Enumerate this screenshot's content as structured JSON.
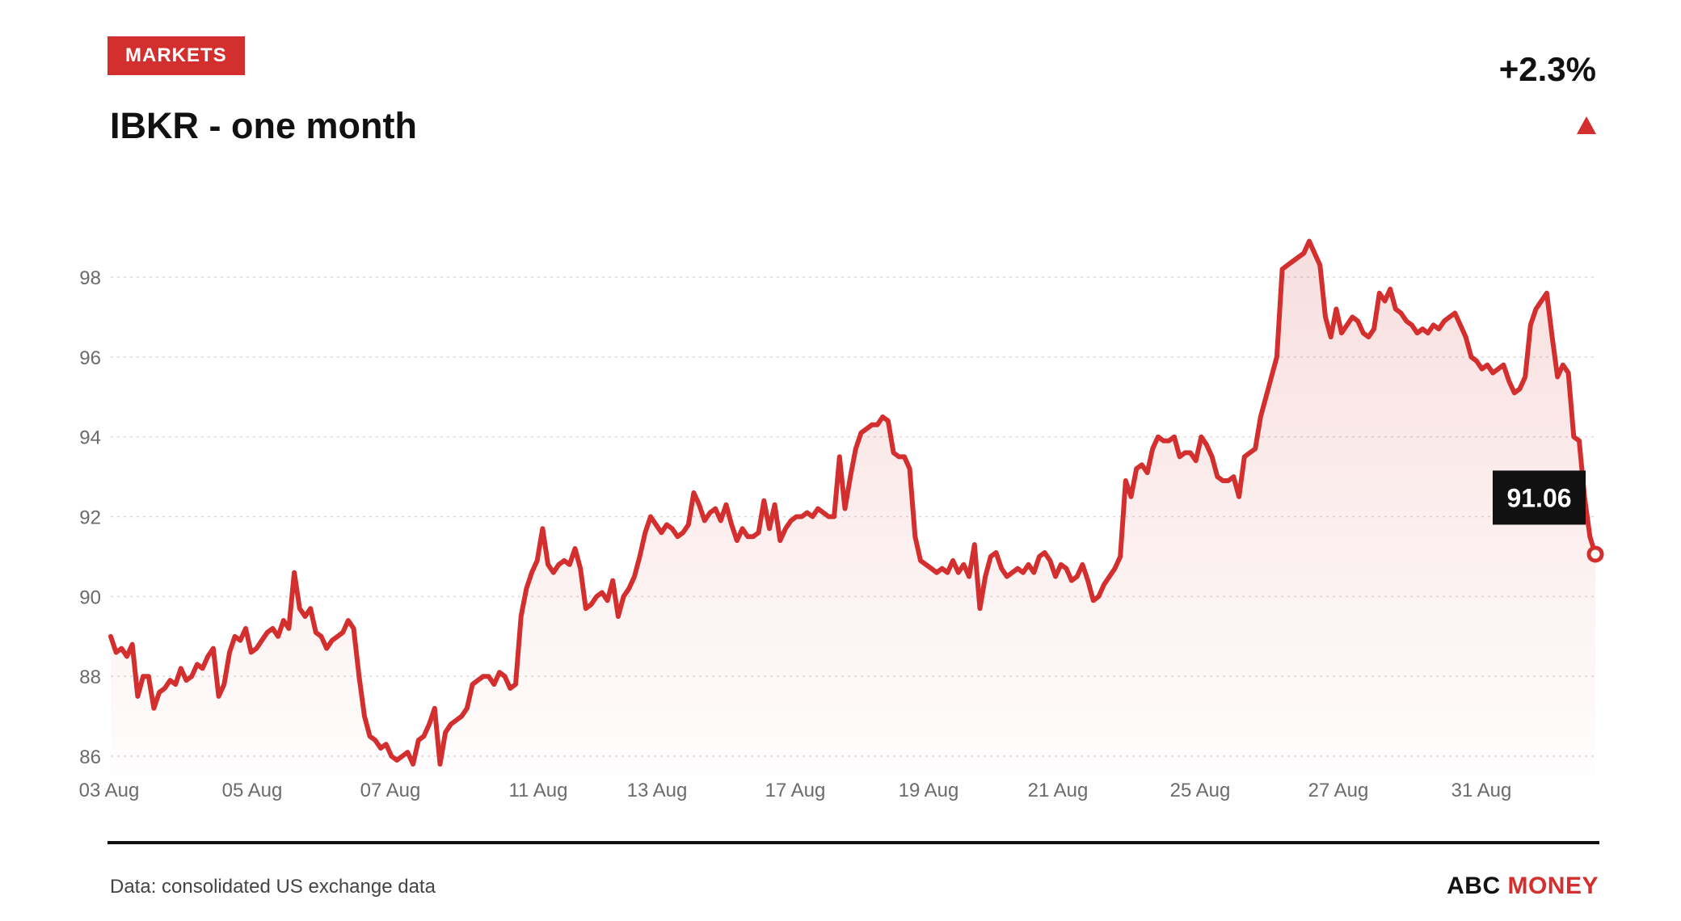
{
  "badge": "MARKETS",
  "title": "IBKR - one month",
  "change": "+2.3%",
  "source": "Data: consolidated US exchange data",
  "brand": {
    "part1": "ABC",
    "part2": "MONEY"
  },
  "colors": {
    "accent": "#d32f2f",
    "grid": "#d9d9d9",
    "axis_text": "#6b6b6b"
  },
  "chart_data": {
    "type": "area",
    "title": "IBKR - one month",
    "xlabel": "",
    "ylabel": "",
    "ylim": [
      85.5,
      99
    ],
    "yticks": [
      86,
      88,
      90,
      92,
      94,
      96,
      98
    ],
    "grid": true,
    "x_tick_labels": [
      "03 Aug",
      "05 Aug",
      "07 Aug",
      "11 Aug",
      "13 Aug",
      "17 Aug",
      "19 Aug",
      "21 Aug",
      "25 Aug",
      "27 Aug",
      "31 Aug"
    ],
    "last_value_label": "91.06",
    "series": [
      {
        "values": [
          89.0,
          88.6,
          88.7,
          88.5,
          88.8,
          87.5,
          88.0,
          88.0,
          87.2,
          87.6,
          87.7,
          87.9,
          87.8,
          88.2,
          87.9,
          88.0,
          88.3,
          88.2,
          88.5,
          88.7,
          87.5,
          87.8,
          88.6,
          89.0,
          88.9,
          89.2,
          88.6,
          88.7,
          88.9,
          89.1,
          89.2,
          89.0,
          89.4,
          89.2,
          90.6,
          89.7,
          89.5,
          89.7,
          89.1,
          89.0,
          88.7,
          88.9,
          89.0,
          89.1,
          89.4,
          89.2,
          88.0,
          87.0,
          86.5,
          86.4,
          86.2,
          86.3,
          86.0,
          85.9,
          86.0,
          86.1,
          85.8,
          86.4,
          86.5,
          86.8,
          87.2,
          85.8,
          86.6,
          86.8,
          86.9,
          87.0,
          87.2,
          87.8,
          87.9,
          88.0,
          88.0,
          87.8,
          88.1,
          88.0,
          87.7,
          87.8,
          89.5,
          90.2,
          90.6,
          90.9,
          91.7,
          90.8,
          90.6,
          90.8,
          90.9,
          90.8,
          91.2,
          90.7,
          89.7,
          89.8,
          90.0,
          90.1,
          89.9,
          90.4,
          89.5,
          90.0,
          90.2,
          90.5,
          91.0,
          91.6,
          92.0,
          91.8,
          91.6,
          91.8,
          91.7,
          91.5,
          91.6,
          91.8,
          92.6,
          92.3,
          91.9,
          92.1,
          92.2,
          91.9,
          92.3,
          91.8,
          91.4,
          91.7,
          91.5,
          91.5,
          91.6,
          92.4,
          91.7,
          92.3,
          91.4,
          91.7,
          91.9,
          92.0,
          92.0,
          92.1,
          92.0,
          92.2,
          92.1,
          92.0,
          92.0,
          93.5,
          92.2,
          93.0,
          93.7,
          94.1,
          94.2,
          94.3,
          94.3,
          94.5,
          94.4,
          93.6,
          93.5,
          93.5,
          93.2,
          91.5,
          90.9,
          90.8,
          90.7,
          90.6,
          90.7,
          90.6,
          90.9,
          90.6,
          90.8,
          90.5,
          91.3,
          89.7,
          90.5,
          91.0,
          91.1,
          90.7,
          90.5,
          90.6,
          90.7,
          90.6,
          90.8,
          90.6,
          91.0,
          91.1,
          90.9,
          90.5,
          90.8,
          90.7,
          90.4,
          90.5,
          90.8,
          90.4,
          89.9,
          90.0,
          90.3,
          90.5,
          90.7,
          91.0,
          92.9,
          92.5,
          93.2,
          93.3,
          93.1,
          93.7,
          94.0,
          93.9,
          93.9,
          94.0,
          93.5,
          93.6,
          93.6,
          93.4,
          94.0,
          93.8,
          93.5,
          93.0,
          92.9,
          92.9,
          93.0,
          92.5,
          93.5,
          93.6,
          93.7,
          94.5,
          95.0,
          95.5,
          96.0,
          98.2,
          98.3,
          98.4,
          98.5,
          98.6,
          98.9,
          98.6,
          98.3,
          97.0,
          96.5,
          97.2,
          96.6,
          96.8,
          97.0,
          96.9,
          96.6,
          96.5,
          96.7,
          97.6,
          97.4,
          97.7,
          97.2,
          97.1,
          96.9,
          96.8,
          96.6,
          96.7,
          96.6,
          96.8,
          96.7,
          96.9,
          97.0,
          97.1,
          96.8,
          96.5,
          96.0,
          95.9,
          95.7,
          95.8,
          95.6,
          95.7,
          95.8,
          95.4,
          95.1,
          95.2,
          95.5,
          96.8,
          97.2,
          97.4,
          97.6,
          96.5,
          95.5,
          95.8,
          95.6,
          94.0,
          93.9,
          92.5,
          91.5,
          91.06
        ]
      }
    ]
  }
}
